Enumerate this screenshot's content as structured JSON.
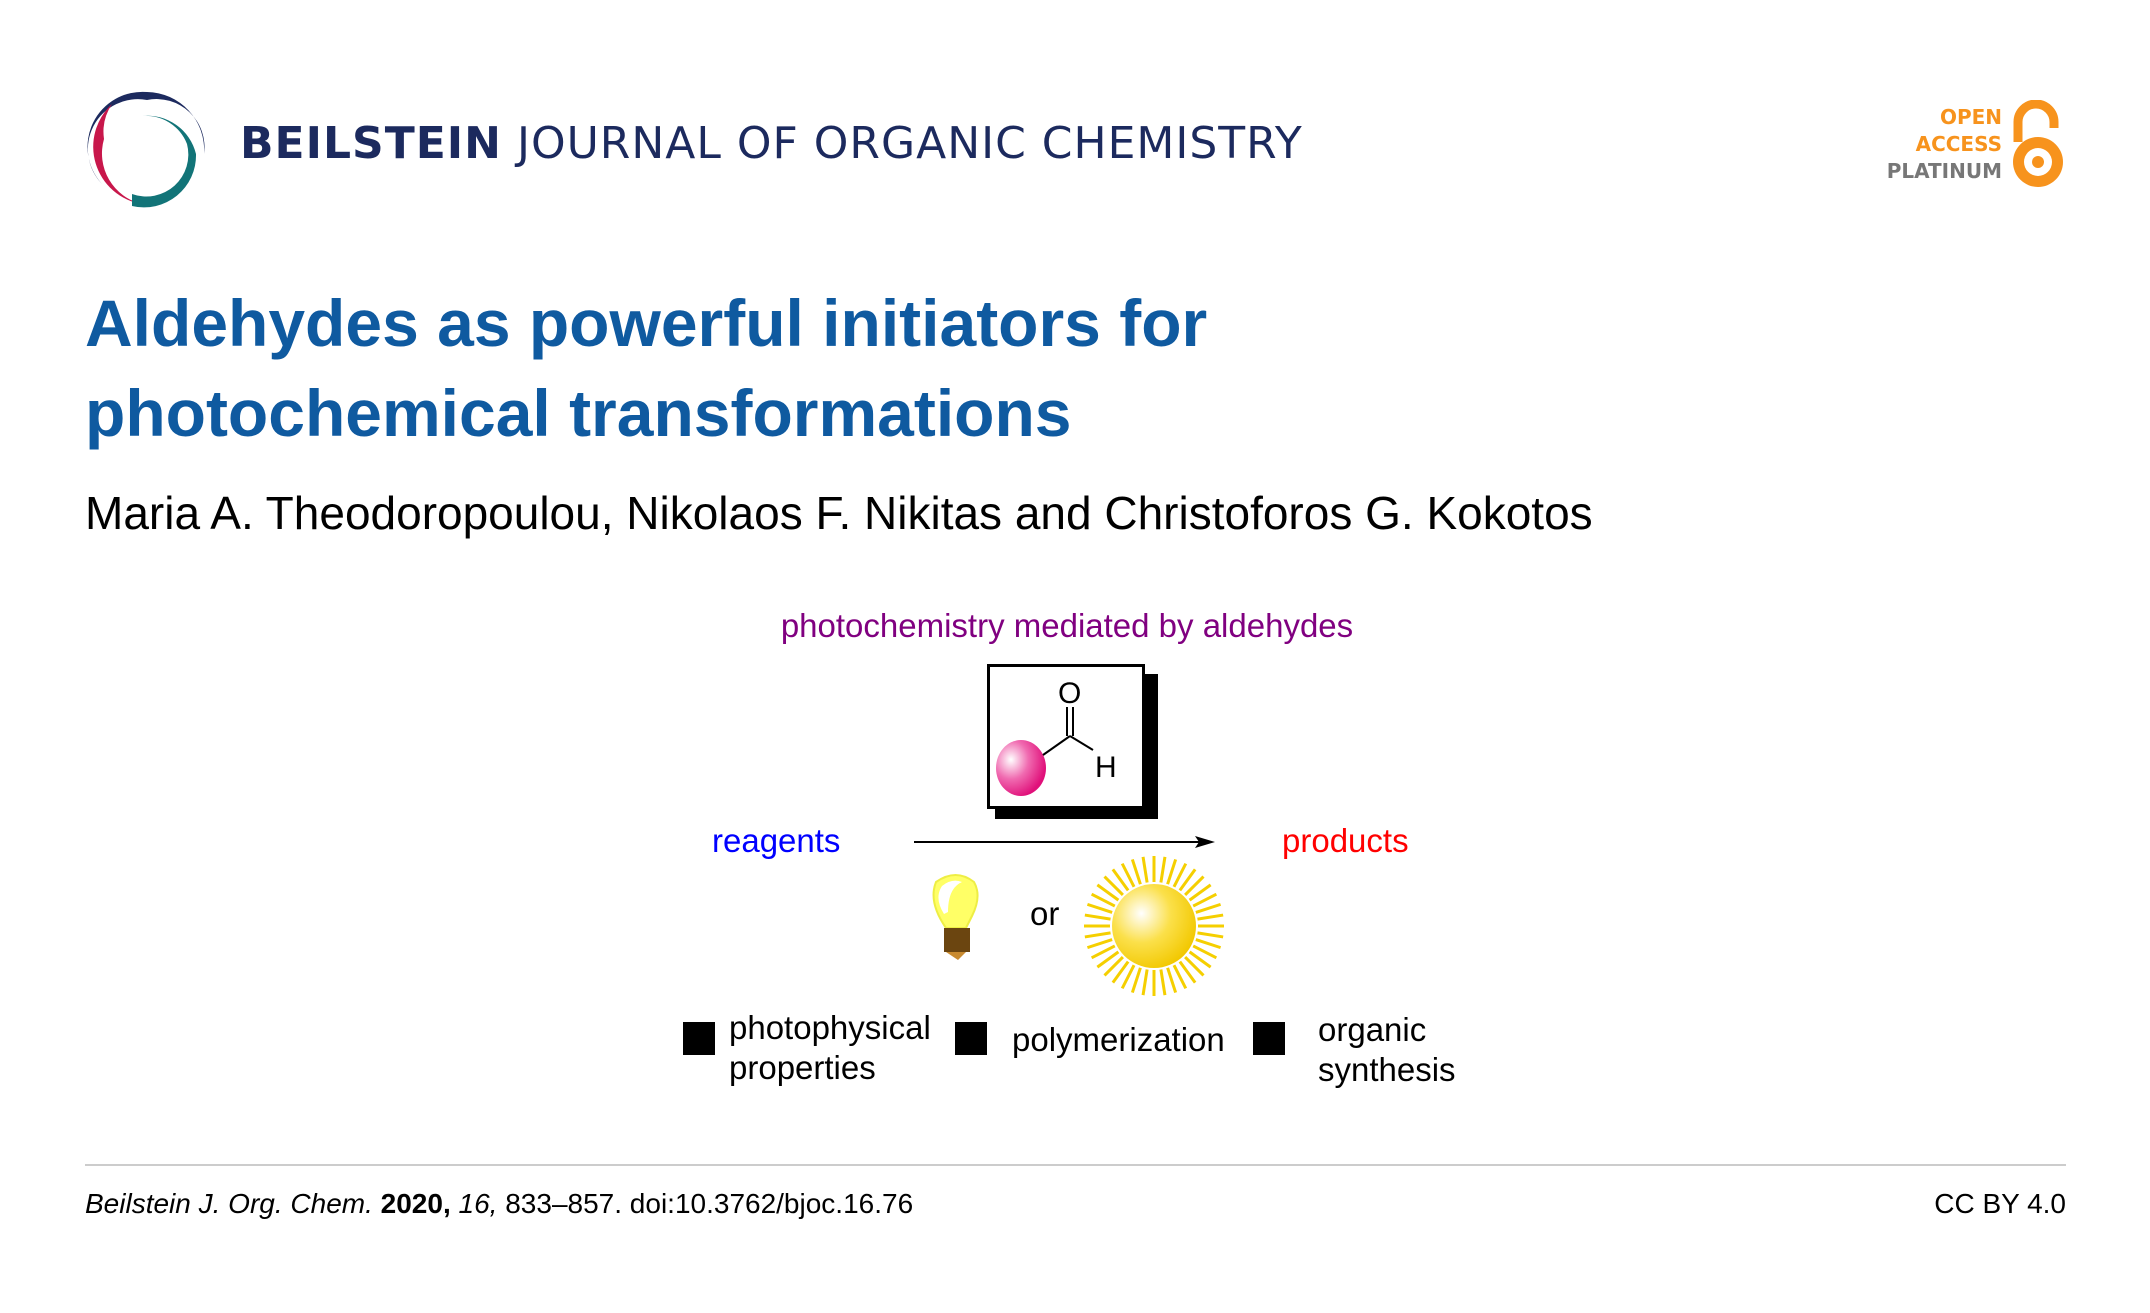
{
  "header": {
    "journal_bold": "BEILSTEIN",
    "journal_rest": "JOURNAL OF ORGANIC CHEMISTRY",
    "badge": {
      "line1": "OPEN",
      "line2": "ACCESS",
      "line3": "PLATINUM",
      "accent": "#f7931d",
      "gray": "#777777"
    }
  },
  "article": {
    "title_line1": "Aldehydes as powerful initiators for",
    "title_line2": "photochemical transformations",
    "authors": "Maria A. Theodoropoulou, Nikolaos F. Nikitas and Christoforos G. Kokotos"
  },
  "graphic": {
    "heading": "photochemistry mediated by aldehydes",
    "atom_o": "O",
    "atom_h": "H",
    "reagents": "reagents",
    "products": "products",
    "or": "or",
    "bullets": [
      {
        "line1": "photophysical",
        "line2": "properties"
      },
      {
        "line1": "polymerization",
        "line2": ""
      },
      {
        "line1": "organic",
        "line2": "synthesis"
      }
    ]
  },
  "footer": {
    "journal": "Beilstein J. Org. Chem.",
    "year": "2020,",
    "volume": "16,",
    "pages_doi": "833–857. doi:10.3762/bjoc.16.76",
    "license": "CC BY 4.0"
  }
}
